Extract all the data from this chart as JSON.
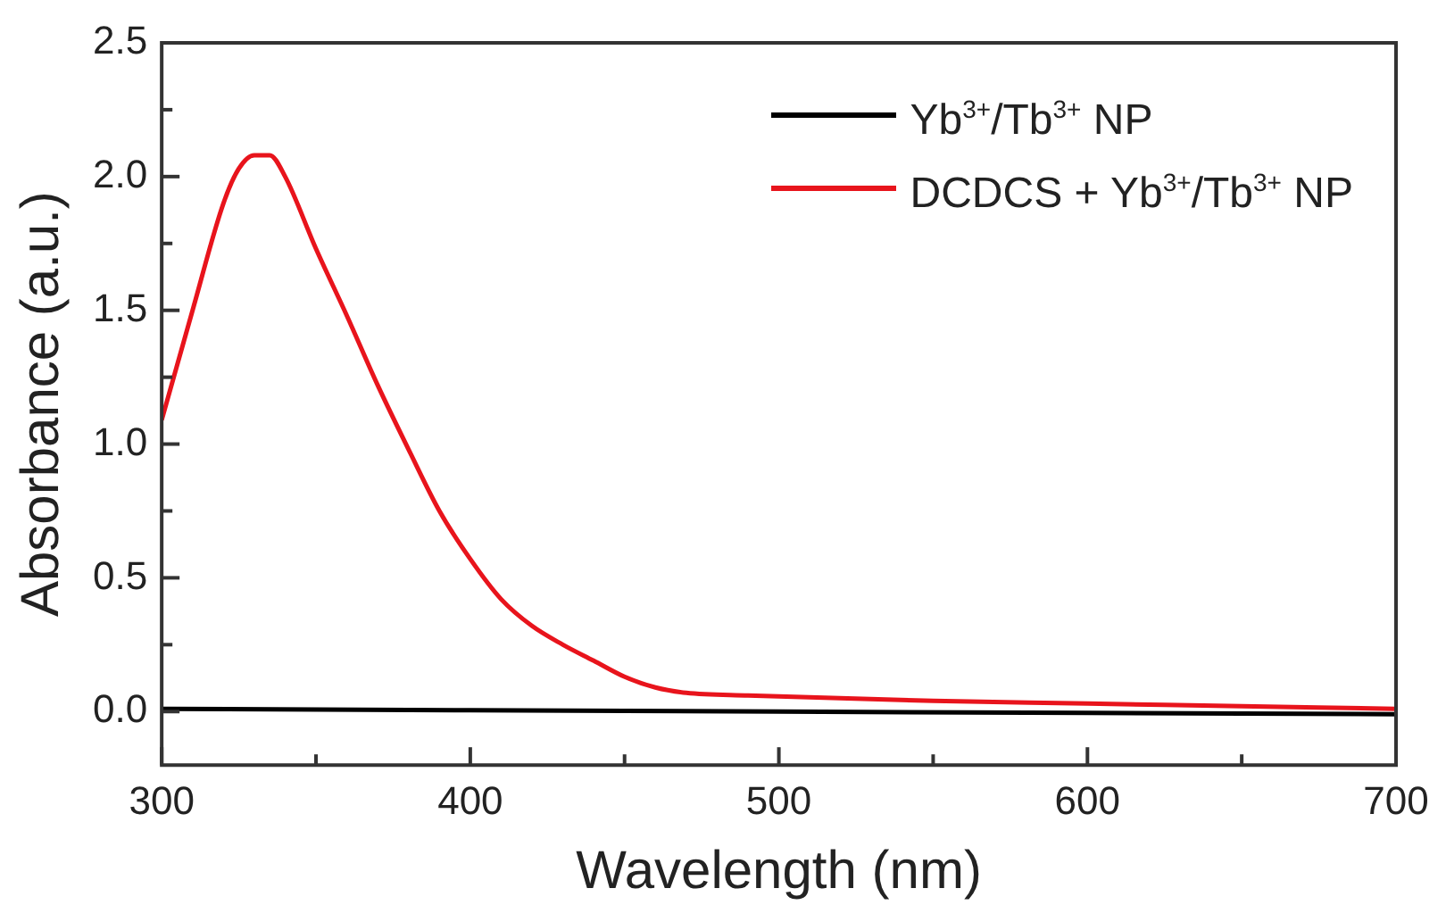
{
  "chart_data": {
    "type": "line",
    "xlabel": "Wavelength (nm)",
    "ylabel": "Absorbance (a.u.)",
    "xlim": [
      300,
      700
    ],
    "ylim": [
      -0.2,
      2.5
    ],
    "xticks": [
      300,
      {
        "value": 350,
        "label": null
      },
      400,
      {
        "value": 450,
        "label": null
      },
      500,
      {
        "value": 550,
        "label": null
      },
      600,
      {
        "value": 650,
        "label": null
      },
      700
    ],
    "yticks": [
      {
        "value": 0,
        "label": "0.0"
      },
      {
        "value": 0.25,
        "label": null
      },
      {
        "value": 0.5,
        "label": "0.5"
      },
      {
        "value": 0.75,
        "label": null
      },
      {
        "value": 1,
        "label": "1.0"
      },
      {
        "value": 1.25,
        "label": null
      },
      {
        "value": 1.5,
        "label": "1.5"
      },
      {
        "value": 1.75,
        "label": null
      },
      {
        "value": 2,
        "label": "2.0"
      },
      {
        "value": 2.25,
        "label": null
      },
      {
        "value": 2.5,
        "label": "2.5"
      }
    ],
    "grid": false,
    "legend": "top right",
    "marker": "none",
    "line_style": "solid",
    "series": [
      {
        "name": "Yb$^{3+}$/Tb$^{3+}$ NP",
        "color": "#000000",
        "x": [
          300,
          400,
          500,
          600,
          700
        ],
        "values": [
          0.01,
          0.005,
          0,
          -0.005,
          -0.01
        ]
      },
      {
        "name": "DCDCS + Yb$^{3+}$/Tb$^{3+}$ NP",
        "color": "#e8141c",
        "x": [
          300,
          310,
          320,
          325,
          330,
          335,
          340,
          350,
          360,
          370,
          380,
          390,
          400,
          410,
          420,
          430,
          440,
          450,
          460,
          470,
          490,
          550,
          600,
          650,
          700
        ],
        "values": [
          1.09,
          1.5,
          1.9,
          2.03,
          2.08,
          2.08,
          2.0,
          1.73,
          1.48,
          1.22,
          0.98,
          0.75,
          0.57,
          0.42,
          0.32,
          0.25,
          0.19,
          0.13,
          0.09,
          0.07,
          0.06,
          0.04,
          0.03,
          0.02,
          0.01
        ]
      }
    ]
  }
}
